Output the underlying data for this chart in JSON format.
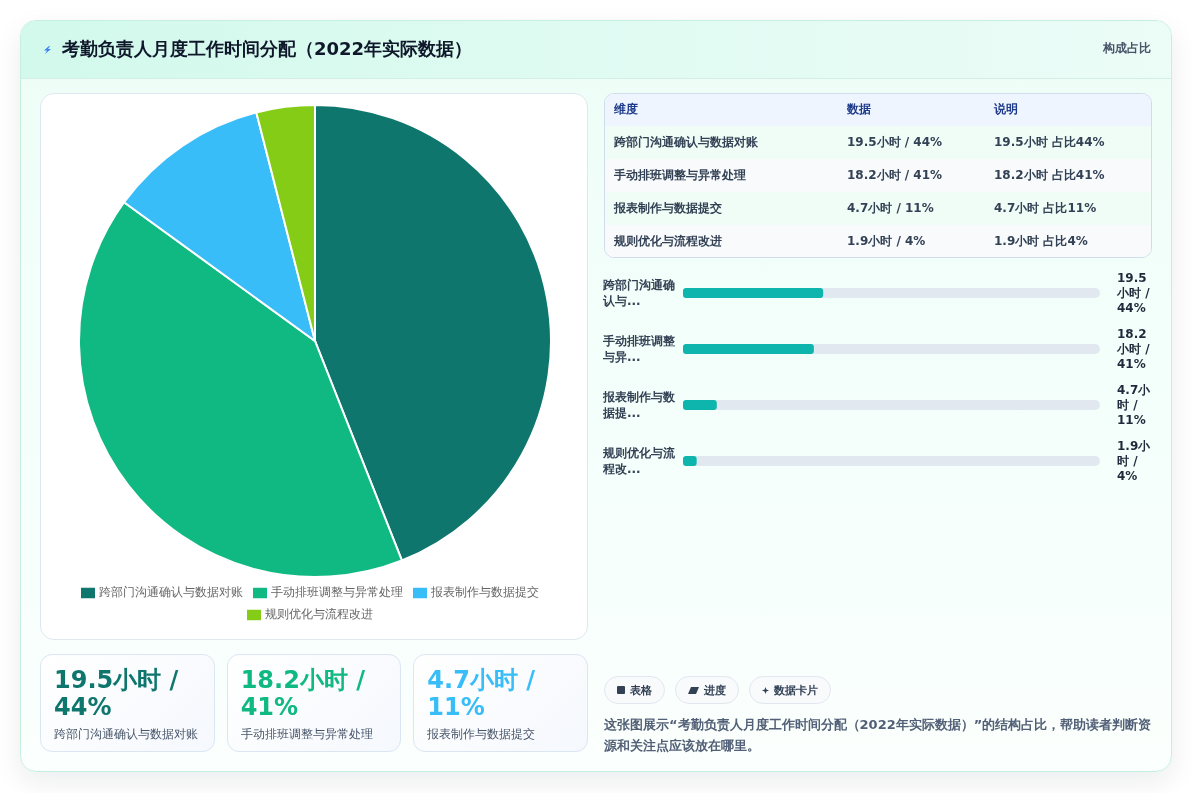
{
  "chart_data": [
    {
      "type": "other",
      "title": "考勤负责人月度工作时间分配（2022年实际数据）",
      "annotations": [
        "构成占比"
      ]
    },
    {
      "type": "pie",
      "categories": [
        "跨部门沟通确认与数据对账",
        "手动排班调整与异常处理",
        "报表制作与数据提交",
        "规则优化与流程改进"
      ],
      "values": [
        44,
        41,
        11,
        4
      ],
      "colors": [
        "#0f766e",
        "#10b981",
        "#38bdf8",
        "#84cc16"
      ],
      "legend": "bottom"
    },
    {
      "type": "other",
      "annotations": [
        "维度",
        "数据",
        "说明",
        "跨部门沟通确认与数据对账",
        "19.5小时 / 44%",
        "19.5小时 占比44%",
        "手动排班调整与异常处理",
        "18.2小时 / 41%",
        "18.2小时 占比41%",
        "报表制作与数据提交",
        "4.7小时 / 11%",
        "4.7小时 占比11%",
        "规则优化与流程改进",
        "1.9小时 / 4%",
        "1.9小时 占比4%"
      ]
    },
    {
      "type": "bar",
      "orientation": "horizontal",
      "categories": [
        "跨部门沟通确认与...",
        "手动排班调整与异...",
        "报表制作与数据提...",
        "规则优化与流程改..."
      ],
      "values": [
        19.5,
        18.2,
        4.7,
        1.9
      ],
      "value_labels": [
        "19.5小时 / 44%",
        "18.2小时 / 41%",
        "4.7小时 / 11%",
        "1.9小时 / 4%"
      ],
      "color": "#0db5ad",
      "xlim": [
        0,
        58
      ],
      "tick_labels": "y"
    },
    {
      "type": "other",
      "categories": [
        "跨部门沟通确认与数据对账",
        "手动排班调整与异常处理",
        "报表制作与数据提交"
      ],
      "value_labels": [
        "19.5小时 / 44%",
        "18.2小时 / 41%",
        "4.7小时 / 11%"
      ]
    },
    {
      "type": "other",
      "annotations": [
        "表格",
        "进度",
        "数据卡片",
        "这张图展示“考勤负责人月度工作时间分配（2022年实际数据）”的结构占比，帮助读者判断资源和关注点应该放在哪里。"
      ]
    }
  ]
}
